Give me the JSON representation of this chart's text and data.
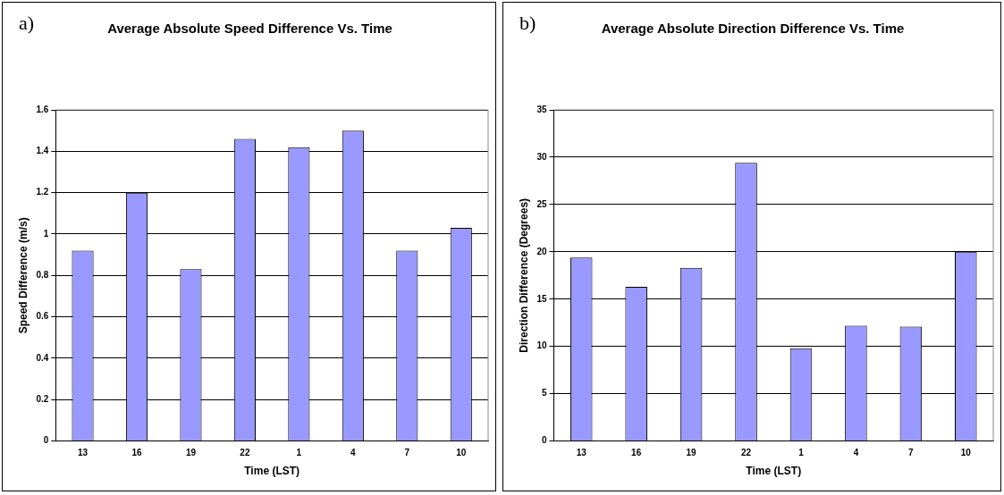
{
  "chart_data": [
    {
      "type": "bar",
      "title": "Average Absolute Speed Difference Vs. Time",
      "xlabel": "Time (LST)",
      "ylabel": "Speed Difference (m/s)",
      "annotations": [
        "a)"
      ],
      "categories": [
        "13",
        "16",
        "19",
        "22",
        "1",
        "4",
        "7",
        "10"
      ],
      "values": [
        0.92,
        1.2,
        0.83,
        1.46,
        1.42,
        1.5,
        0.92,
        1.03
      ],
      "color": "#9999ff",
      "ylim": [
        0,
        1.6
      ],
      "yticks": [
        0,
        0.2,
        0.4,
        0.6,
        0.8,
        1,
        1.2,
        1.4,
        1.6
      ],
      "grid": "y",
      "legend": false
    },
    {
      "type": "bar",
      "title": "Average Absolute Direction Difference Vs. Time",
      "xlabel": "Time (LST)",
      "ylabel": "Direction Difference (Degrees)",
      "annotations": [
        "b)"
      ],
      "categories": [
        "13",
        "16",
        "19",
        "22",
        "1",
        "4",
        "7",
        "10"
      ],
      "values": [
        19.4,
        16.3,
        18.3,
        29.4,
        9.8,
        12.2,
        12.1,
        20
      ],
      "color": "#9999ff",
      "ylim": [
        0,
        35
      ],
      "yticks": [
        0,
        5,
        10,
        15,
        20,
        25,
        30,
        35
      ],
      "grid": "y",
      "legend": false
    }
  ]
}
